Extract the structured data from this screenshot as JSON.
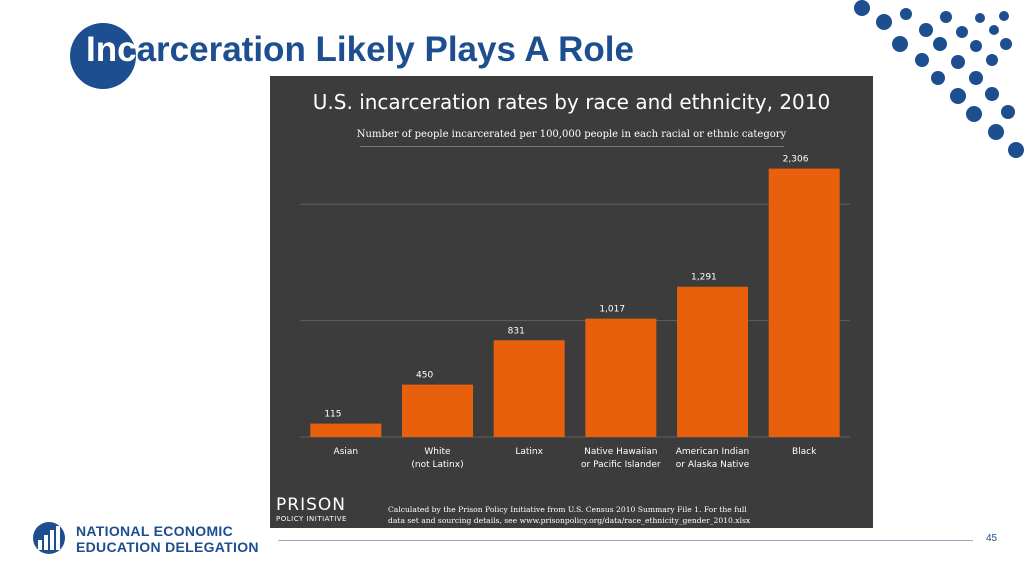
{
  "slide": {
    "title_first": "Inc",
    "title_rest": "arceration Likely Plays A Role",
    "page_number": "45",
    "accent_color": "#1d4e8f"
  },
  "branding": {
    "org_line1": "NATIONAL ECONOMIC",
    "org_line2": "EDUCATION DELEGATION",
    "logo_icon": "need-logo-icon",
    "decoration_icon": "dot-pattern-icon"
  },
  "chart_panel": {
    "logo_line1": "PRISON",
    "logo_line2": "POLICY INITIATIVE",
    "source_line1": "Calculated by the Prison Policy Initiative from U.S. Census 2010 Summary File 1. For the full",
    "source_line2": "data set and sourcing details, see www.prisonpolicy.org/data/race_ethnicity_gender_2010.xlsx",
    "background_color": "#3c3c3c"
  },
  "chart_data": {
    "type": "bar",
    "title": "U.S. incarceration rates by race and ethnicity, 2010",
    "subtitle": "Number of people incarcerated per 100,000 people in each racial or ethnic category",
    "categories": [
      [
        "Asian"
      ],
      [
        "White",
        "(not Latinx)"
      ],
      [
        "Latinx"
      ],
      [
        "Native Hawaiian",
        "or Pacific Islander"
      ],
      [
        "American Indian",
        "or Alaska Native"
      ],
      [
        "Black"
      ]
    ],
    "values": [
      115,
      450,
      831,
      1017,
      1291,
      2306
    ],
    "value_labels": [
      "115",
      "450",
      "831",
      "1,017",
      "1,291",
      "2,306"
    ],
    "ylim": [
      0,
      2500
    ],
    "gridlines": [
      1000,
      2000
    ],
    "grid": true,
    "bar_color": "#e8600c"
  }
}
